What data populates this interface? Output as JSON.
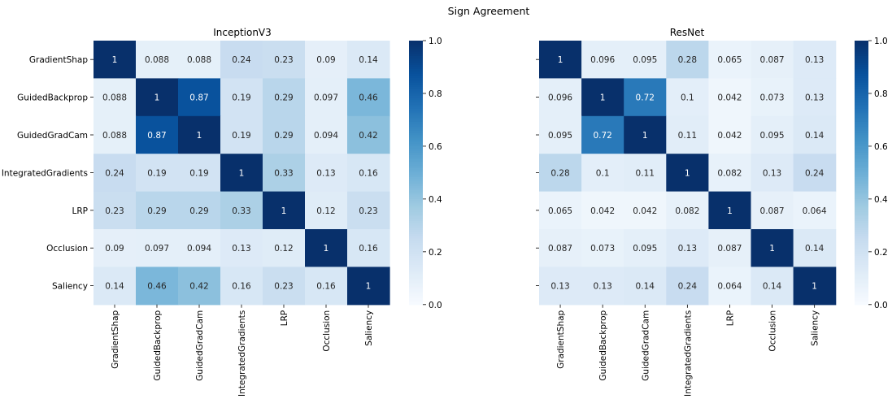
{
  "suptitle": "Sign Agreement",
  "chart_data": [
    {
      "type": "heatmap",
      "title": "InceptionV3",
      "rows": [
        "GradientShap",
        "GuidedBackprop",
        "GuidedGradCam",
        "IntegratedGradients",
        "LRP",
        "Occlusion",
        "Saliency"
      ],
      "cols": [
        "GradientShap",
        "GuidedBackprop",
        "GuidedGradCam",
        "IntegratedGradients",
        "LRP",
        "Occlusion",
        "Saliency"
      ],
      "values": [
        [
          1,
          0.088,
          0.088,
          0.24,
          0.23,
          0.09,
          0.14
        ],
        [
          0.088,
          1,
          0.87,
          0.19,
          0.29,
          0.097,
          0.46
        ],
        [
          0.088,
          0.87,
          1,
          0.19,
          0.29,
          0.094,
          0.42
        ],
        [
          0.24,
          0.19,
          0.19,
          1,
          0.33,
          0.13,
          0.16
        ],
        [
          0.23,
          0.29,
          0.29,
          0.33,
          1,
          0.12,
          0.23
        ],
        [
          0.09,
          0.097,
          0.094,
          0.13,
          0.12,
          1,
          0.16
        ],
        [
          0.14,
          0.46,
          0.42,
          0.16,
          0.23,
          0.16,
          1
        ]
      ],
      "colormap": "Blues",
      "vmin": 0,
      "vmax": 1,
      "colorbar_ticks": [
        "0.0",
        "0.2",
        "0.4",
        "0.6",
        "0.8",
        "1.0"
      ],
      "annotated": true
    },
    {
      "type": "heatmap",
      "title": "ResNet",
      "rows": [
        "GradientShap",
        "GuidedBackprop",
        "GuidedGradCam",
        "IntegratedGradients",
        "LRP",
        "Occlusion",
        "Saliency"
      ],
      "cols": [
        "GradientShap",
        "GuidedBackprop",
        "GuidedGradCam",
        "IntegratedGradients",
        "LRP",
        "Occlusion",
        "Saliency"
      ],
      "values": [
        [
          1,
          0.096,
          0.095,
          0.28,
          0.065,
          0.087,
          0.13
        ],
        [
          0.096,
          1,
          0.72,
          0.1,
          0.042,
          0.073,
          0.13
        ],
        [
          0.095,
          0.72,
          1,
          0.11,
          0.042,
          0.095,
          0.14
        ],
        [
          0.28,
          0.1,
          0.11,
          1,
          0.082,
          0.13,
          0.24
        ],
        [
          0.065,
          0.042,
          0.042,
          0.082,
          1,
          0.087,
          0.064
        ],
        [
          0.087,
          0.073,
          0.095,
          0.13,
          0.087,
          1,
          0.14
        ],
        [
          0.13,
          0.13,
          0.14,
          0.24,
          0.064,
          0.14,
          1
        ]
      ],
      "colormap": "Blues",
      "vmin": 0,
      "vmax": 1,
      "colorbar_ticks": [
        "0.0",
        "0.2",
        "0.4",
        "0.6",
        "0.8",
        "1.0"
      ],
      "annotated": true,
      "row_labels_shown": false
    }
  ]
}
